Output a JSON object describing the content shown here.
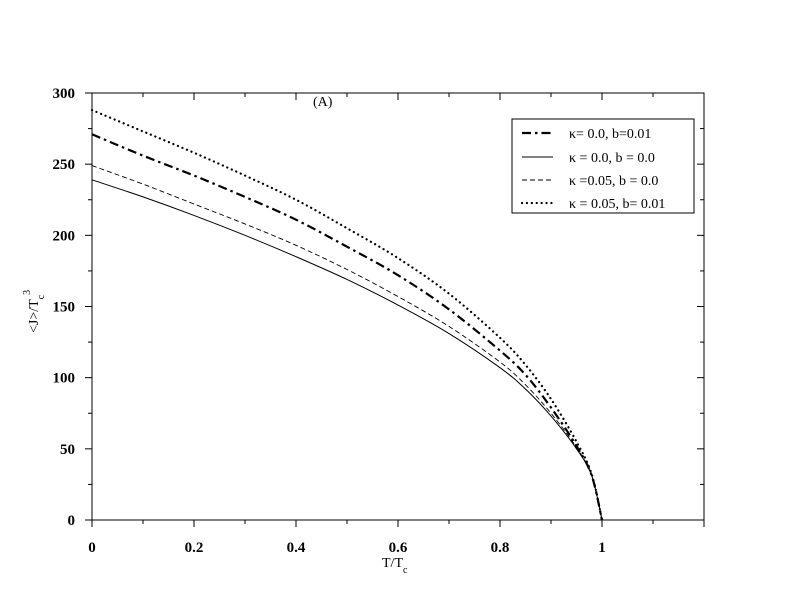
{
  "chart_data": {
    "type": "line",
    "annotation": "(A)",
    "xlabel": {
      "main": "T/T",
      "sub": "c"
    },
    "ylabel": {
      "main": "<J>/T",
      "sub": "c",
      "sup": "3"
    },
    "xlim": [
      0,
      1.2
    ],
    "ylim": [
      0,
      300
    ],
    "x_ticks": [
      0,
      0.2,
      0.4,
      0.6,
      0.8,
      1
    ],
    "x_tick_labels": [
      "0",
      "0.2",
      "0.4",
      "0.6",
      "0.8",
      "1"
    ],
    "y_ticks": [
      0,
      50,
      100,
      150,
      200,
      250,
      300
    ],
    "y_tick_labels": [
      "0",
      "50",
      "100",
      "150",
      "200",
      "250",
      "300"
    ],
    "grid": false,
    "legend_position": "top-right",
    "series": [
      {
        "name": "κ= 0.0, b=0.01",
        "style": "dashdot",
        "x": [
          0,
          0.1,
          0.2,
          0.3,
          0.4,
          0.5,
          0.6,
          0.7,
          0.8,
          0.85,
          0.9,
          0.95,
          0.98,
          1.0
        ],
        "y": [
          271,
          256,
          242,
          227,
          211,
          192,
          172,
          148,
          119,
          102,
          79,
          52,
          31,
          0
        ]
      },
      {
        "name": "κ = 0.0, b = 0.0",
        "style": "solid",
        "x": [
          0,
          0.1,
          0.2,
          0.3,
          0.4,
          0.5,
          0.6,
          0.7,
          0.8,
          0.85,
          0.9,
          0.95,
          0.98,
          1.0
        ],
        "y": [
          239,
          227,
          214,
          200,
          185,
          169,
          151,
          131,
          107,
          92,
          73,
          50,
          31,
          0
        ]
      },
      {
        "name": "κ =0.05, b = 0.0",
        "style": "dashed",
        "x": [
          0,
          0.1,
          0.2,
          0.3,
          0.4,
          0.5,
          0.6,
          0.7,
          0.8,
          0.85,
          0.9,
          0.95,
          0.98,
          1.0
        ],
        "y": [
          249,
          236,
          222,
          208,
          193,
          176,
          157,
          136,
          111,
          95,
          75,
          51,
          31,
          0
        ]
      },
      {
        "name": "κ = 0.05, b= 0.01",
        "style": "dotted",
        "x": [
          0,
          0.1,
          0.2,
          0.3,
          0.4,
          0.5,
          0.6,
          0.7,
          0.8,
          0.85,
          0.9,
          0.95,
          0.98,
          1.0
        ],
        "y": [
          288,
          273,
          258,
          242,
          225,
          205,
          184,
          159,
          128,
          109,
          85,
          55,
          32,
          0
        ]
      }
    ]
  }
}
